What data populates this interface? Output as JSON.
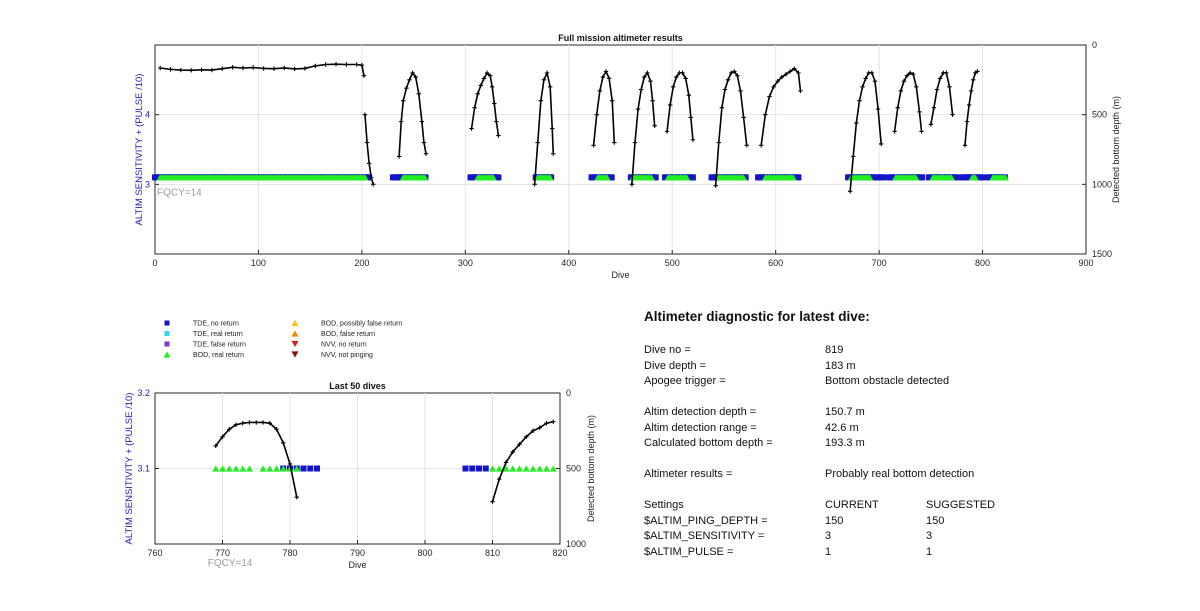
{
  "colors": {
    "left_axis": "#1f1fb4",
    "tde_no_return": "#1414c8",
    "tde_real_return": "#33d6f0",
    "tde_false_return": "#8833cc",
    "bod_real_return": "#22ee22",
    "bod_possibly_false": "#f5c518",
    "bod_false_return": "#f08a00",
    "nvv_no_return": "#d42020",
    "nvv_not_pinging": "#8b1010",
    "fqcy_label": "#9a9a9a",
    "profile": "#000000"
  },
  "legend": {
    "items": [
      {
        "label": "TDE, no return",
        "marker": "square",
        "color_key": "tde_no_return"
      },
      {
        "label": "TDE, real return",
        "marker": "square",
        "color_key": "tde_real_return"
      },
      {
        "label": "TDE, false return",
        "marker": "square",
        "color_key": "tde_false_return"
      },
      {
        "label": "BOD, real return",
        "marker": "triangle-up",
        "color_key": "bod_real_return"
      },
      {
        "label": "BOD, possibly false return",
        "marker": "triangle-up",
        "color_key": "bod_possibly_false"
      },
      {
        "label": "BOD, false return",
        "marker": "triangle-up",
        "color_key": "bod_false_return"
      },
      {
        "label": "NVV, no return",
        "marker": "triangle-down",
        "color_key": "nvv_no_return"
      },
      {
        "label": "NVV, not pinging",
        "marker": "triangle-down",
        "color_key": "nvv_not_pinging"
      }
    ]
  },
  "chart_data": [
    {
      "type": "scatter",
      "title": "Full mission altimeter results",
      "xlabel": "Dive",
      "ylabel_left": "ALTIM SENSITIVITY + (PULSE /10)",
      "ylabel_right": "Detected bottom depth (m)",
      "xlim": [
        0,
        900
      ],
      "ylim_left": [
        2,
        5
      ],
      "ylim_right": [
        1500,
        0
      ],
      "right_axis_reversed": true,
      "x_ticks": [
        0,
        100,
        200,
        300,
        400,
        500,
        600,
        700,
        800,
        900
      ],
      "y_ticks_left": [
        3,
        4
      ],
      "y_ticks_right": [
        0,
        500,
        1000,
        1500
      ],
      "grid": true,
      "annotation": "FQCY=14",
      "segments_setting_3_1": {
        "tde_no_return": [
          [
            0,
            208
          ],
          [
            230,
            262
          ],
          [
            305,
            332
          ],
          [
            368,
            383
          ],
          [
            422,
            442
          ],
          [
            460,
            485
          ],
          [
            493,
            520
          ],
          [
            538,
            571
          ],
          [
            583,
            622
          ],
          [
            670,
            705
          ],
          [
            710,
            742
          ],
          [
            748,
            775
          ],
          [
            780,
            800
          ],
          [
            805,
            822
          ]
        ],
        "bod_real_return": [
          [
            5,
            203
          ],
          [
            240,
            262
          ],
          [
            312,
            328
          ],
          [
            370,
            382
          ],
          [
            428,
            438
          ],
          [
            462,
            480
          ],
          [
            496,
            515
          ],
          [
            545,
            570
          ],
          [
            590,
            618
          ],
          [
            673,
            692
          ],
          [
            716,
            736
          ],
          [
            752,
            770
          ],
          [
            790,
            794
          ],
          [
            810,
            822
          ]
        ]
      },
      "bottom_depth_profiles": [
        {
          "x": [
            5,
            15,
            25,
            35,
            45,
            55,
            65,
            75,
            85,
            95,
            105,
            115,
            125,
            135,
            145,
            155,
            165,
            175,
            185,
            195,
            200,
            202
          ],
          "y": [
            165,
            175,
            180,
            182,
            178,
            180,
            170,
            160,
            165,
            162,
            168,
            170,
            165,
            172,
            168,
            150,
            140,
            138,
            140,
            140,
            145,
            220
          ]
        },
        {
          "x": [
            203,
            205,
            207,
            209,
            211
          ],
          "y": [
            500,
            700,
            850,
            950,
            1000
          ]
        },
        {
          "x": [
            236,
            238,
            240,
            243,
            246,
            249,
            252,
            255,
            258,
            260,
            262
          ],
          "y": [
            800,
            550,
            400,
            310,
            250,
            200,
            230,
            350,
            550,
            700,
            780
          ]
        },
        {
          "x": [
            306,
            309,
            312,
            315,
            318,
            321,
            324,
            326,
            328,
            330,
            332
          ],
          "y": [
            600,
            450,
            350,
            290,
            240,
            200,
            220,
            300,
            420,
            550,
            650
          ]
        },
        {
          "x": [
            367,
            370,
            373,
            376,
            379,
            382,
            384,
            385
          ],
          "y": [
            1000,
            700,
            400,
            250,
            200,
            300,
            600,
            780
          ]
        },
        {
          "x": [
            424,
            427,
            430,
            433,
            436,
            439,
            442,
            444
          ],
          "y": [
            720,
            500,
            330,
            230,
            190,
            240,
            400,
            700
          ]
        },
        {
          "x": [
            461,
            464,
            467,
            470,
            473,
            476,
            479,
            481,
            483
          ],
          "y": [
            1000,
            700,
            460,
            320,
            230,
            200,
            260,
            400,
            580
          ]
        },
        {
          "x": [
            495,
            498,
            501,
            504,
            507,
            510,
            513,
            516,
            518,
            520
          ],
          "y": [
            620,
            430,
            300,
            230,
            200,
            200,
            240,
            360,
            520,
            680
          ]
        },
        {
          "x": [
            542,
            545,
            548,
            551,
            554,
            557,
            560,
            563,
            566,
            569,
            572
          ],
          "y": [
            1010,
            700,
            450,
            320,
            250,
            200,
            190,
            220,
            330,
            520,
            720
          ]
        },
        {
          "x": [
            586,
            590,
            594,
            598,
            602,
            606,
            610,
            614,
            618,
            622,
            624
          ],
          "y": [
            720,
            500,
            370,
            300,
            260,
            230,
            210,
            190,
            170,
            200,
            330
          ]
        },
        {
          "x": [
            672,
            675,
            678,
            681,
            684,
            687,
            690,
            693,
            696,
            699,
            702
          ],
          "y": [
            1050,
            800,
            560,
            400,
            300,
            240,
            200,
            200,
            260,
            460,
            710
          ]
        },
        {
          "x": [
            715,
            718,
            721,
            724,
            727,
            730,
            733,
            736,
            739,
            741
          ],
          "y": [
            620,
            450,
            330,
            260,
            220,
            200,
            210,
            300,
            480,
            620
          ]
        },
        {
          "x": [
            750,
            753,
            756,
            759,
            762,
            765,
            768,
            771
          ],
          "y": [
            570,
            450,
            320,
            240,
            200,
            200,
            300,
            500
          ]
        },
        {
          "x": [
            783,
            785,
            787,
            789,
            791,
            793,
            795
          ],
          "y": [
            720,
            550,
            430,
            330,
            250,
            200,
            190
          ]
        }
      ]
    },
    {
      "type": "scatter",
      "title": "Last 50 dives",
      "xlabel": "Dive",
      "ylabel_left": "ALTIM SENSITIVITY + (PULSE /10)",
      "ylabel_right": "Detected bottom depth (m)",
      "xlim": [
        760,
        820
      ],
      "ylim_left": [
        3.0,
        3.2
      ],
      "ylim_right": [
        1000,
        0
      ],
      "right_axis_reversed": true,
      "x_ticks": [
        760,
        770,
        780,
        790,
        800,
        810,
        820
      ],
      "y_ticks_left": [
        3.1,
        3.2
      ],
      "y_ticks_right": [
        0,
        500,
        1000
      ],
      "grid": true,
      "annotation": "FQCY=14",
      "tde_no_return_x": [
        779,
        780,
        781,
        782,
        783,
        784,
        806,
        807,
        808,
        809
      ],
      "tde_no_return_y": 3.1,
      "bod_real_return_x": [
        769,
        770,
        771,
        772,
        773,
        774,
        776,
        777,
        778,
        779,
        780,
        781,
        810,
        811,
        812,
        813,
        814,
        815,
        816,
        817,
        818,
        819
      ],
      "bod_real_return_y": 3.1,
      "bottom_depth_profiles": [
        {
          "x": [
            769,
            770,
            771,
            772,
            773,
            774,
            775,
            776,
            777,
            778,
            779,
            780,
            781
          ],
          "y": [
            350,
            290,
            240,
            210,
            200,
            195,
            195,
            195,
            200,
            240,
            330,
            470,
            690
          ]
        },
        {
          "x": [
            810,
            811,
            812,
            813,
            814,
            815,
            816,
            817,
            818,
            819
          ],
          "y": [
            720,
            570,
            460,
            390,
            340,
            290,
            250,
            230,
            200,
            190
          ]
        }
      ]
    }
  ],
  "diagnostic": {
    "title": "Altimeter diagnostic for latest dive:",
    "dive_no_label": "Dive no =",
    "dive_no_value": "819",
    "dive_depth_label": "Dive depth =",
    "dive_depth_value": "183 m",
    "apogee_label": "Apogee trigger =",
    "apogee_value": "Bottom obstacle detected",
    "altim_detection_depth_label": "Altim detection depth =",
    "altim_detection_depth_value": "150.7 m",
    "altim_detection_range_label": "Altim detection range =",
    "altim_detection_range_value": "42.6 m",
    "calc_bottom_label": "Calculated bottom depth =",
    "calc_bottom_value": "193.3 m",
    "results_label": "Altimeter results =",
    "results_value": "Probably real bottom detection",
    "settings_label": "Settings",
    "current_label": "CURRENT",
    "suggested_label": "SUGGESTED",
    "settings": [
      {
        "name": "$ALTIM_PING_DEPTH =",
        "current": "150",
        "suggested": "150"
      },
      {
        "name": "$ALTIM_SENSITIVITY =",
        "current": "3",
        "suggested": "3"
      },
      {
        "name": "$ALTIM_PULSE =",
        "current": "1",
        "suggested": "1"
      }
    ]
  }
}
